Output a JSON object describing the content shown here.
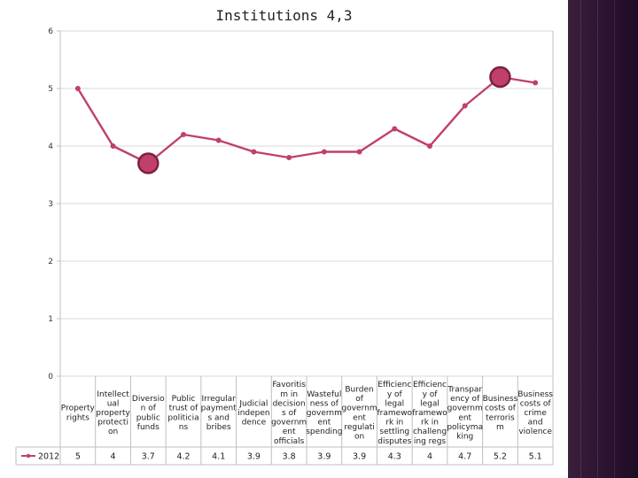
{
  "slide": {
    "title": "Institutions  4,3",
    "accent_band_color": "#2a1230"
  },
  "chart_data": {
    "type": "line",
    "title": "Institutions  4,3",
    "xlabel": "",
    "ylabel": "",
    "ylim": [
      0,
      6
    ],
    "yticks": [
      0,
      1,
      2,
      3,
      4,
      5,
      6
    ],
    "grid": true,
    "legend_placement": "bottom-left (data table)",
    "categories": [
      [
        "Property",
        "rights"
      ],
      [
        "Intellect",
        "ual",
        "property",
        "protecti",
        "on"
      ],
      [
        "Diversio",
        "n of",
        "public",
        "funds"
      ],
      [
        "Public",
        "trust of",
        "politicia",
        "ns"
      ],
      [
        "Irregular",
        "payment",
        "s and",
        "bribes"
      ],
      [
        "Judicial",
        "indepen",
        "dence"
      ],
      [
        "Favoritis",
        "m in",
        "decision",
        "s of",
        "governm",
        "ent",
        "officials"
      ],
      [
        "Wasteful",
        "ness of",
        "governm",
        "ent",
        "spending"
      ],
      [
        "Burden",
        "of",
        "governm",
        "ent",
        "regulati",
        "on"
      ],
      [
        "Efficienc",
        "y of",
        "legal",
        "framewo",
        "rk in",
        "settling",
        "disputes"
      ],
      [
        "Efficienc",
        "y of",
        "legal",
        "framewo",
        "rk in",
        "challeng",
        "ing regs"
      ],
      [
        "Transpar",
        "ency of",
        "governm",
        "ent",
        "policyma",
        "king"
      ],
      [
        "Business",
        "costs of",
        "terroris",
        "m"
      ],
      [
        "Business",
        "costs of",
        "crime",
        "and",
        "violence"
      ]
    ],
    "series": [
      {
        "name": "2012",
        "color": "#c0406a",
        "values": [
          5,
          4,
          3.7,
          4.2,
          4.1,
          3.9,
          3.8,
          3.9,
          3.9,
          4.3,
          4,
          4.7,
          5.2,
          5.1
        ],
        "value_labels": [
          "5",
          "4",
          "3.7",
          "4.2",
          "4.1",
          "3.9",
          "3.8",
          "3.9",
          "3.9",
          "4.3",
          "4",
          "4.7",
          "5.2",
          "5.1"
        ],
        "highlighted_indices": [
          2,
          12
        ]
      }
    ]
  }
}
